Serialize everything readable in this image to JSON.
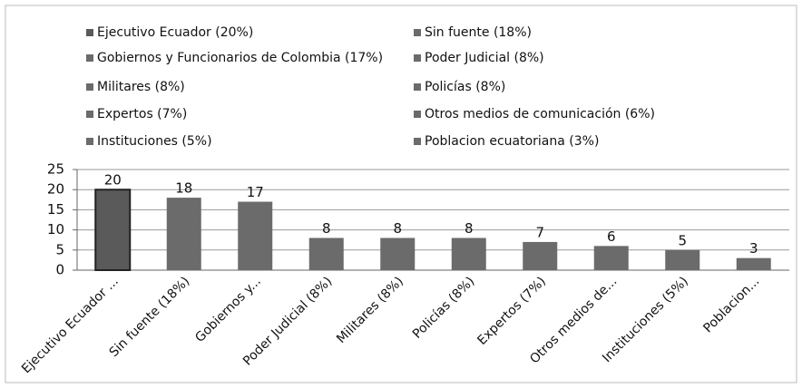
{
  "chart_data": {
    "type": "bar",
    "legend": [
      "Ejecutivo Ecuador (20%)",
      "Sin fuente (18%)",
      "Gobiernos y Funcionarios de Colombia (17%)",
      "Poder Judicial (8%)",
      "Militares (8%)",
      "Policías (8%)",
      "Expertos (7%)",
      "Otros medios de comunicación (6%)",
      "Instituciones (5%)",
      "Poblacion ecuatoriana (3%)"
    ],
    "categories": [
      "Ejecutivo Ecuador ...",
      "Sin fuente (18%)",
      "Gobiernos y...",
      "Poder Judicial (8%)",
      "Militares (8%)",
      "Policías (8%)",
      "Expertos (7%)",
      "Otros medios de...",
      "Instituciones (5%)",
      "Poblacion..."
    ],
    "values": [
      20,
      18,
      17,
      8,
      8,
      8,
      7,
      6,
      5,
      3
    ],
    "colors": [
      "#5a5a5a",
      "#6b6b6b",
      "#6b6b6b",
      "#6b6b6b",
      "#6b6b6b",
      "#6b6b6b",
      "#6b6b6b",
      "#6b6b6b",
      "#6b6b6b",
      "#6b6b6b"
    ],
    "ylim": [
      0,
      25
    ],
    "yticks": [
      0,
      5,
      10,
      15,
      20,
      25
    ],
    "grid": true
  }
}
